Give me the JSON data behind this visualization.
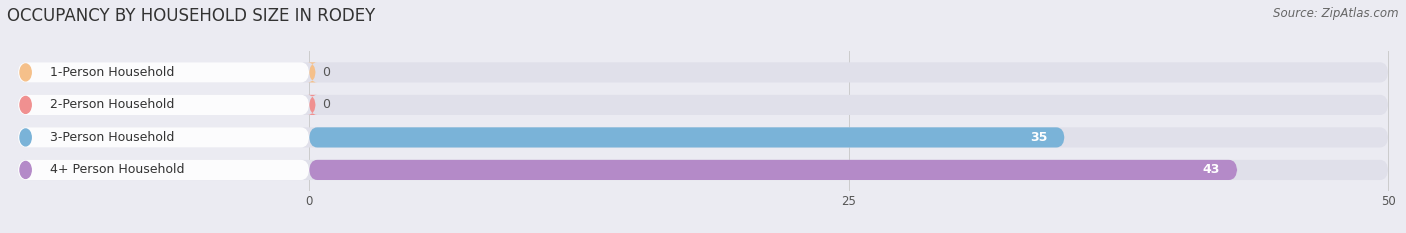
{
  "title": "OCCUPANCY BY HOUSEHOLD SIZE IN RODEY",
  "source": "Source: ZipAtlas.com",
  "categories": [
    "1-Person Household",
    "2-Person Household",
    "3-Person Household",
    "4+ Person Household"
  ],
  "values": [
    0,
    0,
    35,
    43
  ],
  "bar_colors": [
    "#f5c08a",
    "#f09090",
    "#7ab3d8",
    "#b48ac8"
  ],
  "xlim_data": [
    0,
    50
  ],
  "xticks": [
    0,
    25,
    50
  ],
  "background_color": "#ebebf2",
  "bar_bg_color": "#e0e0ea",
  "title_fontsize": 12,
  "source_fontsize": 8.5,
  "label_fontsize": 9,
  "value_fontsize": 9
}
